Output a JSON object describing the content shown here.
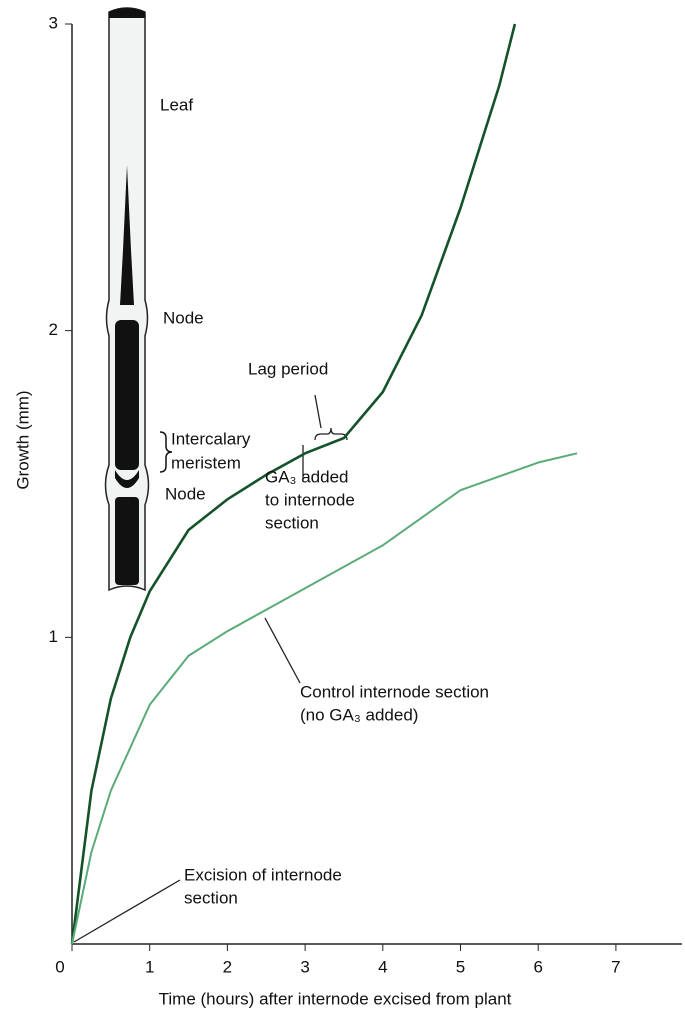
{
  "chart_data": {
    "type": "line",
    "x_label": "Time (hours) after internode excised from plant",
    "y_label": "Growth (mm)",
    "xlim": [
      0,
      7.85
    ],
    "ylim": [
      0,
      3
    ],
    "xticks": [
      0,
      1,
      2,
      3,
      4,
      5,
      6,
      7
    ],
    "yticks": [
      1,
      2,
      3
    ],
    "series": [
      {
        "color": "#14532a",
        "x": [
          0,
          0.25,
          0.5,
          0.75,
          1,
          1.5,
          2,
          2.5,
          3,
          3.5,
          4,
          4.5,
          5,
          5.5,
          5.7
        ],
        "values": [
          0,
          0.5,
          0.8,
          1.0,
          1.15,
          1.35,
          1.45,
          1.53,
          1.6,
          1.65,
          1.8,
          2.05,
          2.4,
          2.8,
          3.0
        ]
      },
      {
        "color": "#5aab78",
        "x": [
          0,
          0.25,
          0.5,
          1,
          1.5,
          2,
          2.5,
          3,
          4,
          5,
          6,
          6.5
        ],
        "values": [
          0,
          0.3,
          0.5,
          0.78,
          0.94,
          1.02,
          1.09,
          1.16,
          1.3,
          1.48,
          1.57,
          1.6
        ]
      }
    ],
    "annotations": [
      "Lag period",
      [
        "GA₃ added",
        "to internode",
        "section"
      ],
      [
        "Control internode section",
        "(no GA₃ added)"
      ],
      [
        "Excision of internode",
        "section"
      ]
    ],
    "plant_labels": [
      "Leaf",
      "Node",
      [
        "Intercalary",
        "meristem"
      ],
      "Node"
    ]
  }
}
